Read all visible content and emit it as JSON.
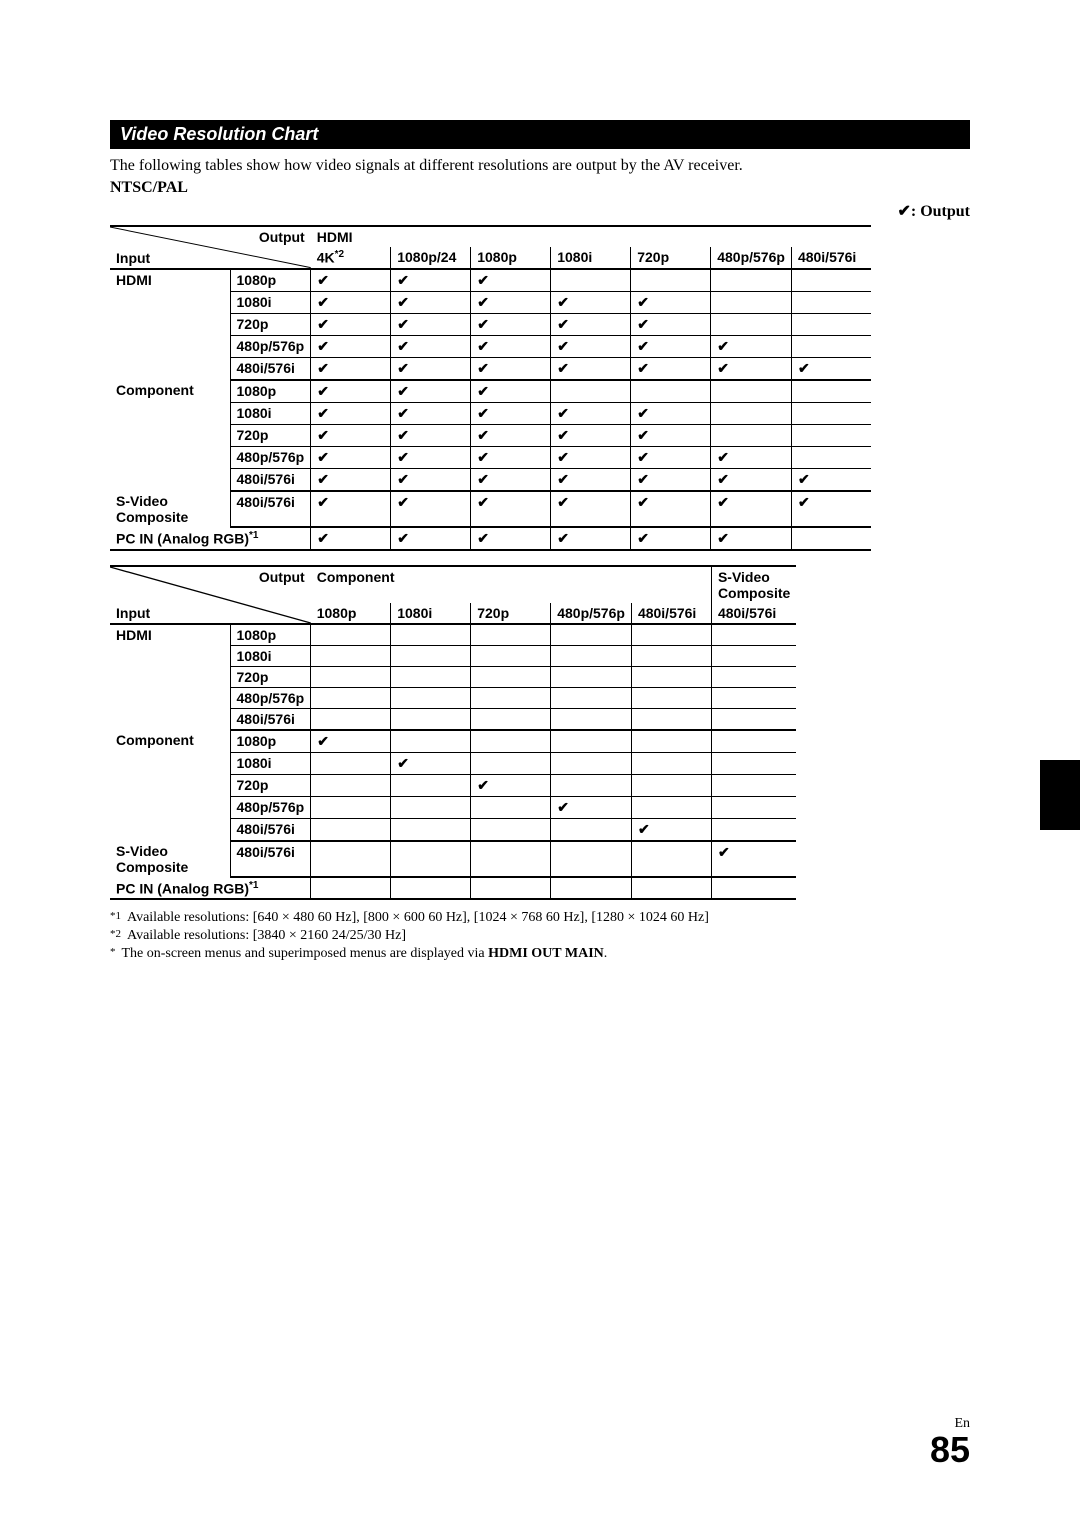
{
  "section_title": "Video Resolution Chart",
  "intro": "The following tables show how video signals at different resolutions are output by the AV receiver.",
  "ntscpal": "NTSC/PAL",
  "legend_check": "✔",
  "legend_label": ": Output",
  "labels": {
    "output": "Output",
    "input": "Input",
    "hdmi": "HDMI",
    "component": "Component",
    "svideo": "S-Video",
    "composite": "Composite",
    "pcin": "PC IN (Analog RGB)",
    "sup1": "*1",
    "sup2": "*2"
  },
  "check": "✔",
  "table1": {
    "group_header": "HDMI",
    "cols": [
      "4K",
      "1080p/24",
      "1080p",
      "1080i",
      "720p",
      "480p/576p",
      "480i/576i"
    ],
    "col0_sup": "*2",
    "inputs": [
      {
        "group": "HDMI",
        "res": "1080p",
        "cells": [
          1,
          1,
          1,
          0,
          0,
          0,
          0
        ]
      },
      {
        "group": "",
        "res": "1080i",
        "cells": [
          1,
          1,
          1,
          1,
          1,
          0,
          0
        ]
      },
      {
        "group": "",
        "res": "720p",
        "cells": [
          1,
          1,
          1,
          1,
          1,
          0,
          0
        ]
      },
      {
        "group": "",
        "res": "480p/576p",
        "cells": [
          1,
          1,
          1,
          1,
          1,
          1,
          0
        ]
      },
      {
        "group": "",
        "res": "480i/576i",
        "cells": [
          1,
          1,
          1,
          1,
          1,
          1,
          1
        ],
        "gend": true
      },
      {
        "group": "Component",
        "res": "1080p",
        "cells": [
          1,
          1,
          1,
          0,
          0,
          0,
          0
        ]
      },
      {
        "group": "",
        "res": "1080i",
        "cells": [
          1,
          1,
          1,
          1,
          1,
          0,
          0
        ]
      },
      {
        "group": "",
        "res": "720p",
        "cells": [
          1,
          1,
          1,
          1,
          1,
          0,
          0
        ]
      },
      {
        "group": "",
        "res": "480p/576p",
        "cells": [
          1,
          1,
          1,
          1,
          1,
          1,
          0
        ]
      },
      {
        "group": "",
        "res": "480i/576i",
        "cells": [
          1,
          1,
          1,
          1,
          1,
          1,
          1
        ],
        "gend": true
      },
      {
        "group": "S-Video\nComposite",
        "res": "480i/576i",
        "cells": [
          1,
          1,
          1,
          1,
          1,
          1,
          1
        ],
        "gend": true,
        "tall": true
      },
      {
        "group": "__PCIN__",
        "res": "",
        "cells": [
          1,
          1,
          1,
          1,
          1,
          1,
          0
        ],
        "gend": true,
        "span": true
      }
    ]
  },
  "table2": {
    "group1": "Component",
    "group2a": "S-Video",
    "group2b": "Composite",
    "cols": [
      "1080p",
      "1080i",
      "720p",
      "480p/576p",
      "480i/576i",
      "480i/576i"
    ],
    "inputs": [
      {
        "group": "HDMI",
        "res": "1080p",
        "cells": [
          0,
          0,
          0,
          0,
          0,
          0
        ]
      },
      {
        "group": "",
        "res": "1080i",
        "cells": [
          0,
          0,
          0,
          0,
          0,
          0
        ]
      },
      {
        "group": "",
        "res": "720p",
        "cells": [
          0,
          0,
          0,
          0,
          0,
          0
        ]
      },
      {
        "group": "",
        "res": "480p/576p",
        "cells": [
          0,
          0,
          0,
          0,
          0,
          0
        ]
      },
      {
        "group": "",
        "res": "480i/576i",
        "cells": [
          0,
          0,
          0,
          0,
          0,
          0
        ],
        "gend": true
      },
      {
        "group": "Component",
        "res": "1080p",
        "cells": [
          1,
          0,
          0,
          0,
          0,
          0
        ]
      },
      {
        "group": "",
        "res": "1080i",
        "cells": [
          0,
          1,
          0,
          0,
          0,
          0
        ]
      },
      {
        "group": "",
        "res": "720p",
        "cells": [
          0,
          0,
          1,
          0,
          0,
          0
        ]
      },
      {
        "group": "",
        "res": "480p/576p",
        "cells": [
          0,
          0,
          0,
          1,
          0,
          0
        ]
      },
      {
        "group": "",
        "res": "480i/576i",
        "cells": [
          0,
          0,
          0,
          0,
          1,
          0
        ],
        "gend": true
      },
      {
        "group": "S-Video\nComposite",
        "res": "480i/576i",
        "cells": [
          0,
          0,
          0,
          0,
          0,
          1
        ],
        "gend": true,
        "tall": true
      },
      {
        "group": "__PCIN__",
        "res": "",
        "cells": [
          0,
          0,
          0,
          0,
          0,
          0
        ],
        "gend": true,
        "span": true
      }
    ]
  },
  "footnotes": {
    "f1_mark": "*1",
    "f1": "Available resolutions: [640 × 480 60 Hz], [800 × 600 60 Hz], [1024 × 768 60 Hz], [1280 × 1024 60 Hz]",
    "f2_mark": "*2",
    "f2": "Available resolutions: [3840 × 2160 24/25/30 Hz]",
    "f3_mark": "*",
    "f3a": "The on-screen menus and superimposed menus are displayed via ",
    "f3b": "HDMI OUT MAIN",
    "f3c": "."
  },
  "page": {
    "lang": "En",
    "num": "85"
  }
}
